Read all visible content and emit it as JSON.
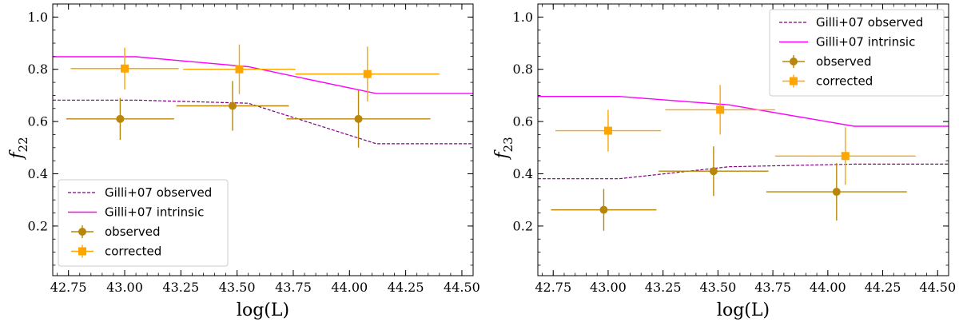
{
  "colors": {
    "observed": "#b8860b",
    "corrected": "#ffa500",
    "gilli_observed": "#800080",
    "gilli_intrinsic": "#ff00ff"
  },
  "chart_data": [
    {
      "type": "line",
      "title": "",
      "xlabel": "log(L)",
      "ylabel": "f",
      "ylabel_sub": "22",
      "xlim": [
        42.68,
        44.55
      ],
      "ylim": [
        0.01,
        1.05
      ],
      "xticks": [
        "42.75",
        "43.00",
        "43.25",
        "43.50",
        "43.75",
        "44.00",
        "44.25",
        "44.50"
      ],
      "yticks": [
        "0.2",
        "0.4",
        "0.6",
        "0.8",
        "1.0"
      ],
      "legend_position": "lower-left",
      "lines": [
        {
          "name": "Gilli+07 observed",
          "style": "dashed",
          "color_key": "gilli_observed",
          "x": [
            42.68,
            43.05,
            43.55,
            44.12,
            44.55
          ],
          "y": [
            0.682,
            0.682,
            0.67,
            0.515,
            0.515
          ]
        },
        {
          "name": "Gilli+07 intrinsic",
          "style": "solid",
          "color_key": "gilli_intrinsic",
          "x": [
            42.68,
            43.05,
            43.55,
            44.12,
            44.55
          ],
          "y": [
            0.848,
            0.848,
            0.81,
            0.707,
            0.707
          ]
        }
      ],
      "points": [
        {
          "name": "observed",
          "marker": "circle",
          "color_key": "observed",
          "x": [
            42.98,
            43.48,
            44.04
          ],
          "y": [
            0.61,
            0.66,
            0.61
          ],
          "xerr_low": [
            0.24,
            0.25,
            0.32
          ],
          "xerr_high": [
            0.24,
            0.25,
            0.32
          ],
          "yerr_low": [
            0.08,
            0.095,
            0.11
          ],
          "yerr_high": [
            0.08,
            0.095,
            0.11
          ]
        },
        {
          "name": "corrected",
          "marker": "square",
          "color_key": "corrected",
          "x": [
            43.0,
            43.51,
            44.08
          ],
          "y": [
            0.803,
            0.8,
            0.782
          ],
          "xerr_low": [
            0.24,
            0.25,
            0.32
          ],
          "xerr_high": [
            0.24,
            0.25,
            0.32
          ],
          "yerr_low": [
            0.08,
            0.095,
            0.105
          ],
          "yerr_high": [
            0.08,
            0.095,
            0.105
          ]
        }
      ]
    },
    {
      "type": "line",
      "title": "",
      "xlabel": "log(L)",
      "ylabel": "f",
      "ylabel_sub": "23",
      "xlim": [
        42.68,
        44.55
      ],
      "ylim": [
        0.01,
        1.05
      ],
      "xticks": [
        "42.75",
        "43.00",
        "43.25",
        "43.50",
        "43.75",
        "44.00",
        "44.25",
        "44.50"
      ],
      "yticks": [
        "0.2",
        "0.4",
        "0.6",
        "0.8",
        "1.0"
      ],
      "legend_position": "top-right",
      "lines": [
        {
          "name": "Gilli+07 observed",
          "style": "dashed",
          "color_key": "gilli_observed",
          "x": [
            42.68,
            43.05,
            43.55,
            44.12,
            44.55
          ],
          "y": [
            0.381,
            0.381,
            0.427,
            0.437,
            0.437
          ]
        },
        {
          "name": "Gilli+07 intrinsic",
          "style": "solid",
          "color_key": "gilli_intrinsic",
          "x": [
            42.68,
            43.05,
            43.55,
            44.12,
            44.55
          ],
          "y": [
            0.696,
            0.696,
            0.664,
            0.582,
            0.582
          ]
        }
      ],
      "points": [
        {
          "name": "observed",
          "marker": "circle",
          "color_key": "observed",
          "x": [
            42.98,
            43.48,
            44.04
          ],
          "y": [
            0.262,
            0.41,
            0.331
          ],
          "xerr_low": [
            0.24,
            0.25,
            0.32
          ],
          "xerr_high": [
            0.24,
            0.25,
            0.32
          ],
          "yerr_low": [
            0.08,
            0.095,
            0.11
          ],
          "yerr_high": [
            0.08,
            0.095,
            0.11
          ]
        },
        {
          "name": "corrected",
          "marker": "square",
          "color_key": "corrected",
          "x": [
            43.0,
            43.51,
            44.08
          ],
          "y": [
            0.565,
            0.645,
            0.468
          ],
          "xerr_low": [
            0.24,
            0.25,
            0.32
          ],
          "xerr_high": [
            0.24,
            0.25,
            0.32
          ],
          "yerr_low": [
            0.08,
            0.095,
            0.11
          ],
          "yerr_high": [
            0.08,
            0.095,
            0.11
          ]
        }
      ]
    }
  ]
}
